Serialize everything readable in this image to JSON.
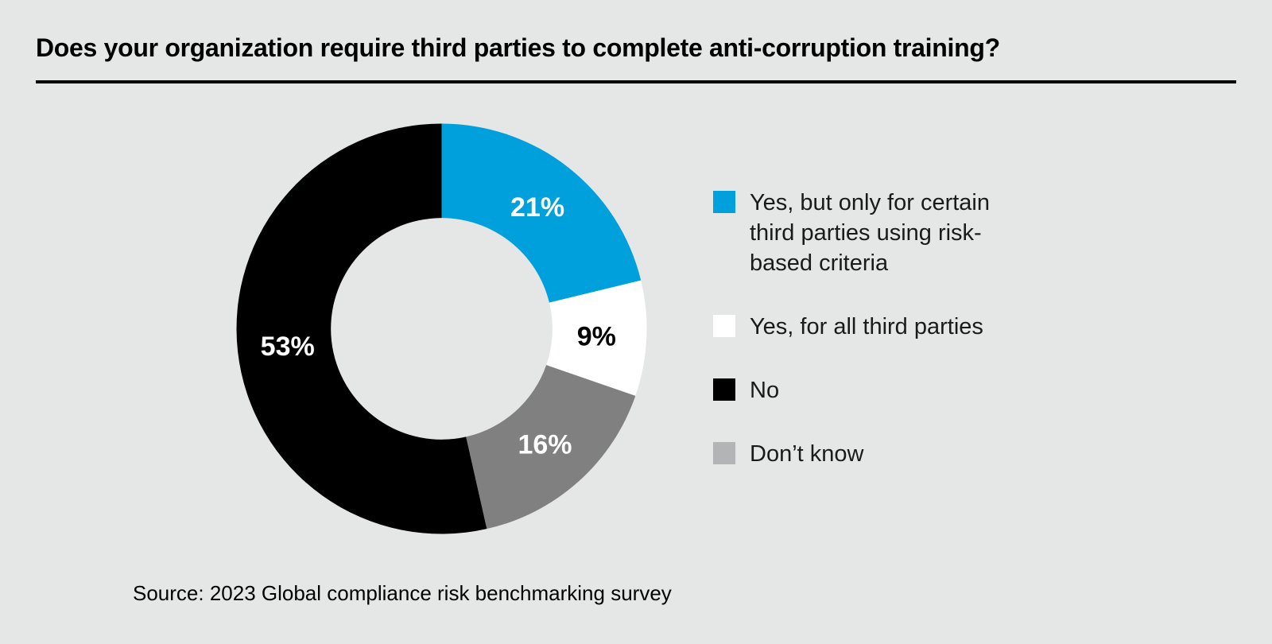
{
  "colors": {
    "background": "#E5E6E6",
    "accent_blue": "#00A0DC",
    "slice_gray": "#808080",
    "legend_gray": "#B2B4B6",
    "black": "#000000",
    "white": "#FFFFFF"
  },
  "chart_data": {
    "type": "donut",
    "title": "Does your organization require third parties to complete anti-corruption training?",
    "source": "Source: 2023 Global compliance risk benchmarking survey",
    "unit": "%",
    "start_angle_deg": 0,
    "direction": "clockwise",
    "inner_radius_ratio": 0.54,
    "slices": [
      {
        "category": "Yes, but only for certain third parties using risk-based criteria",
        "value": 21,
        "data_label": "21%",
        "color": "#00A0DC",
        "label_color": "#FFFFFF"
      },
      {
        "category": "Yes, for all third parties",
        "value": 9,
        "data_label": "9%",
        "color": "#FFFFFF",
        "label_color": "#000000"
      },
      {
        "category": "Don’t know",
        "value": 16,
        "data_label": "16%",
        "color": "#808080",
        "label_color": "#FFFFFF"
      },
      {
        "category": "No",
        "value": 53,
        "data_label": "53%",
        "color": "#000000",
        "label_color": "#FFFFFF"
      }
    ],
    "legend": {
      "position": "right",
      "items": [
        {
          "label": "Yes, but only for certain third parties using risk-based criteria",
          "swatch_color": "#00A0DC"
        },
        {
          "label": "Yes, for all third parties",
          "swatch_color": "#FFFFFF"
        },
        {
          "label": "No",
          "swatch_color": "#000000"
        },
        {
          "label": "Don’t know",
          "swatch_color": "#B2B4B6"
        }
      ]
    }
  }
}
